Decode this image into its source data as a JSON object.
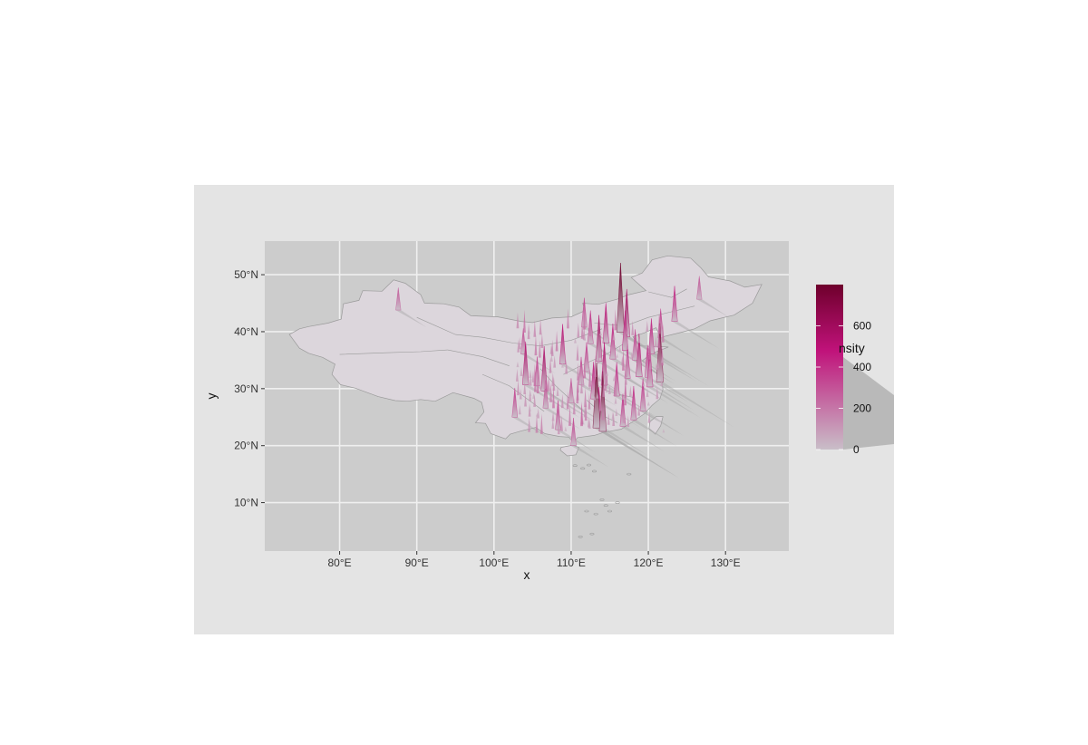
{
  "chart_data": {
    "type": "heatmap",
    "subtype": "3d-map-density-surface",
    "region": "China",
    "xlabel": "x",
    "ylabel": "y",
    "x_ticks": [
      "80°E",
      "90°E",
      "100°E",
      "110°E",
      "120°E",
      "130°E"
    ],
    "x_tick_values": [
      80,
      90,
      100,
      110,
      120,
      130
    ],
    "y_ticks": [
      "10°N",
      "20°N",
      "30°N",
      "40°N",
      "50°N"
    ],
    "y_tick_values": [
      10,
      20,
      30,
      40,
      50
    ],
    "xlim": [
      70.3,
      138.2
    ],
    "ylim": [
      1.5,
      55.9
    ],
    "grid": true,
    "legend": {
      "title": "nsity",
      "labels": [
        "0",
        "200",
        "400",
        "600"
      ],
      "values": [
        0,
        200,
        400,
        600
      ],
      "max": 800,
      "placement": "right"
    },
    "colors": {
      "panel": "#cccccc",
      "canvas": "#e4e4e4",
      "land": "#dcd6dc",
      "border": "#9a9a9a",
      "grid": "#efefef",
      "low": "#c9bec8",
      "mid": "#c0127a",
      "high": "#6e002c",
      "shadow": "#a6a6a6"
    },
    "peaks": [
      {
        "lon": 116.4,
        "lat": 39.9,
        "density": 900
      },
      {
        "lon": 117.2,
        "lat": 39.1,
        "density": 620
      },
      {
        "lon": 113.3,
        "lat": 23.1,
        "density": 850
      },
      {
        "lon": 114.1,
        "lat": 22.5,
        "density": 780
      },
      {
        "lon": 121.5,
        "lat": 31.2,
        "density": 760
      },
      {
        "lon": 120.2,
        "lat": 30.3,
        "density": 520
      },
      {
        "lon": 118.8,
        "lat": 32.1,
        "density": 560
      },
      {
        "lon": 104.1,
        "lat": 30.7,
        "density": 560
      },
      {
        "lon": 106.5,
        "lat": 29.6,
        "density": 580
      },
      {
        "lon": 108.9,
        "lat": 34.3,
        "density": 520
      },
      {
        "lon": 113.6,
        "lat": 34.8,
        "density": 600
      },
      {
        "lon": 114.3,
        "lat": 30.6,
        "density": 560
      },
      {
        "lon": 112.9,
        "lat": 28.2,
        "density": 480
      },
      {
        "lon": 115.9,
        "lat": 28.7,
        "density": 440
      },
      {
        "lon": 117.0,
        "lat": 36.7,
        "density": 520
      },
      {
        "lon": 120.4,
        "lat": 36.1,
        "density": 460
      },
      {
        "lon": 114.5,
        "lat": 38.0,
        "density": 520
      },
      {
        "lon": 112.5,
        "lat": 37.9,
        "density": 430
      },
      {
        "lon": 123.4,
        "lat": 41.8,
        "density": 460
      },
      {
        "lon": 119.3,
        "lat": 26.1,
        "density": 420
      },
      {
        "lon": 118.1,
        "lat": 24.5,
        "density": 440
      },
      {
        "lon": 110.3,
        "lat": 20.0,
        "density": 360
      },
      {
        "lon": 102.7,
        "lat": 25.0,
        "density": 380
      },
      {
        "lon": 106.7,
        "lat": 26.6,
        "density": 360
      },
      {
        "lon": 108.3,
        "lat": 22.8,
        "density": 380
      },
      {
        "lon": 111.7,
        "lat": 40.8,
        "density": 380
      },
      {
        "lon": 103.8,
        "lat": 36.1,
        "density": 330
      },
      {
        "lon": 87.6,
        "lat": 43.8,
        "density": 290
      },
      {
        "lon": 113.6,
        "lat": 23.5,
        "density": 500
      },
      {
        "lon": 116.7,
        "lat": 23.4,
        "density": 420
      },
      {
        "lon": 112.0,
        "lat": 33.0,
        "density": 380
      },
      {
        "lon": 115.4,
        "lat": 35.2,
        "density": 460
      },
      {
        "lon": 118.3,
        "lat": 35.0,
        "density": 400
      },
      {
        "lon": 119.9,
        "lat": 32.0,
        "density": 420
      },
      {
        "lon": 111.3,
        "lat": 30.7,
        "density": 360
      },
      {
        "lon": 110.0,
        "lat": 27.5,
        "density": 320
      },
      {
        "lon": 105.6,
        "lat": 30.5,
        "density": 380
      },
      {
        "lon": 117.3,
        "lat": 31.8,
        "density": 420
      },
      {
        "lon": 121.6,
        "lat": 38.9,
        "density": 380
      },
      {
        "lon": 126.6,
        "lat": 45.7,
        "density": 300
      }
    ]
  }
}
